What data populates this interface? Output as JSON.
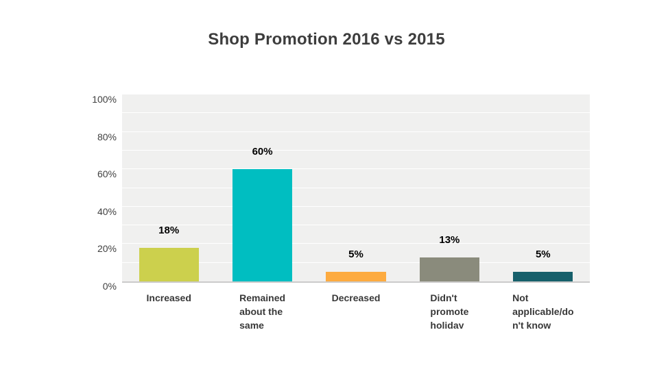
{
  "chart_data": {
    "type": "bar",
    "title": "Shop Promotion 2016 vs 2015",
    "categories": [
      "Increased",
      "Remained about the same",
      "Decreased",
      "Didn't promote holiday",
      "Not applicable/don't know"
    ],
    "category_display": [
      "Increased",
      "Remained\nabout the\nsame",
      "Decreased",
      "Didn't\npromote\nholiday",
      "Not\napplicable/do\nn't know"
    ],
    "values": [
      18,
      60,
      5,
      13,
      5
    ],
    "value_labels": [
      "18%",
      "60%",
      "5%",
      "13%",
      "5%"
    ],
    "bar_colors": [
      "#ccd04d",
      "#00bec1",
      "#fdab40",
      "#8a8b7c",
      "#17606b"
    ],
    "y_ticks": [
      "100%",
      "80%",
      "60%",
      "40%",
      "20%",
      "0%"
    ],
    "y_tick_values": [
      100,
      80,
      60,
      40,
      20,
      0
    ],
    "ylim": [
      0,
      100
    ],
    "xlabel": "",
    "ylabel": "",
    "grid": "horizontal, every 10%",
    "gridline_color": "#ffffff",
    "plot_background": "#f0f0ef",
    "axis_line_color": "#cbcaca",
    "title_color": "#3d3d3d",
    "tick_label_color": "#3f3f3f",
    "value_label_color": "#000000",
    "legend_position": "none"
  }
}
